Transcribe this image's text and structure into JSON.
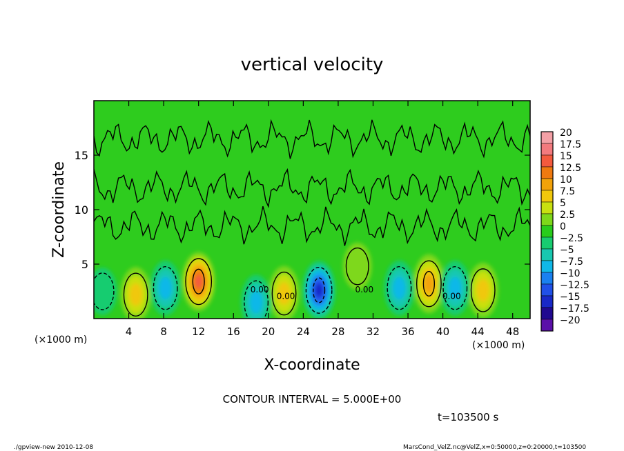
{
  "chart_data": {
    "type": "heatmap",
    "title": "vertical velocity",
    "xlabel": "X-coordinate",
    "ylabel": "Z-coordinate",
    "x_ticks": [
      "4",
      "8",
      "12",
      "16",
      "20",
      "24",
      "28",
      "32",
      "36",
      "40",
      "44",
      "48"
    ],
    "y_ticks": [
      "5",
      "10",
      "15"
    ],
    "x_unit_left": "(×1000 m)",
    "x_unit_right": "(×1000 m)",
    "xlim": [
      0,
      50
    ],
    "ylim": [
      0,
      20
    ],
    "colorbar": {
      "labels": [
        "20",
        "17.5",
        "15",
        "12.5",
        "10",
        "7.5",
        "5",
        "2.5",
        "0",
        "−2.5",
        "−5",
        "−7.5",
        "−10",
        "−12.5",
        "−15",
        "−17.5",
        "−20"
      ],
      "colors": [
        "#f4a0a6",
        "#f37a7e",
        "#f45a3e",
        "#f07a10",
        "#f2a20a",
        "#f0c80c",
        "#c8e010",
        "#7ed81a",
        "#28cc1c",
        "#18cc70",
        "#18c8b0",
        "#10b8e8",
        "#1a80f0",
        "#2050e8",
        "#1828c8",
        "#200890",
        "#5a10a8"
      ]
    },
    "contour_interval": "CONTOUR INTERVAL = 5.000E+00",
    "zero_labels": [
      "0.00",
      "0.00",
      "0.00",
      "0.00"
    ],
    "updrafts": [
      {
        "x": 4.8,
        "z": 2.2,
        "w": 7.5
      },
      {
        "x": 12.0,
        "z": 3.4,
        "w": 15
      },
      {
        "x": 21.8,
        "z": 2.3,
        "w": 7.5
      },
      {
        "x": 30.2,
        "z": 4.8,
        "w": 2.5
      },
      {
        "x": 38.4,
        "z": 3.2,
        "w": 10
      },
      {
        "x": 44.6,
        "z": 2.6,
        "w": 7.5
      }
    ],
    "downdrafts": [
      {
        "x": 1.0,
        "z": 2.5,
        "w": -2.5
      },
      {
        "x": 8.2,
        "z": 2.8,
        "w": -7.5
      },
      {
        "x": 18.6,
        "z": 1.5,
        "w": -7.5
      },
      {
        "x": 25.8,
        "z": 2.6,
        "w": -15
      },
      {
        "x": 35.0,
        "z": 2.8,
        "w": -7.5
      },
      {
        "x": 41.4,
        "z": 2.8,
        "w": -7.5
      }
    ]
  },
  "time_label": "t=103500 s",
  "footer_left": "./gpview-new  2010-12-08",
  "footer_right": "MarsCond_VelZ.nc@VelZ,x=0:50000,z=0:20000,t=103500"
}
